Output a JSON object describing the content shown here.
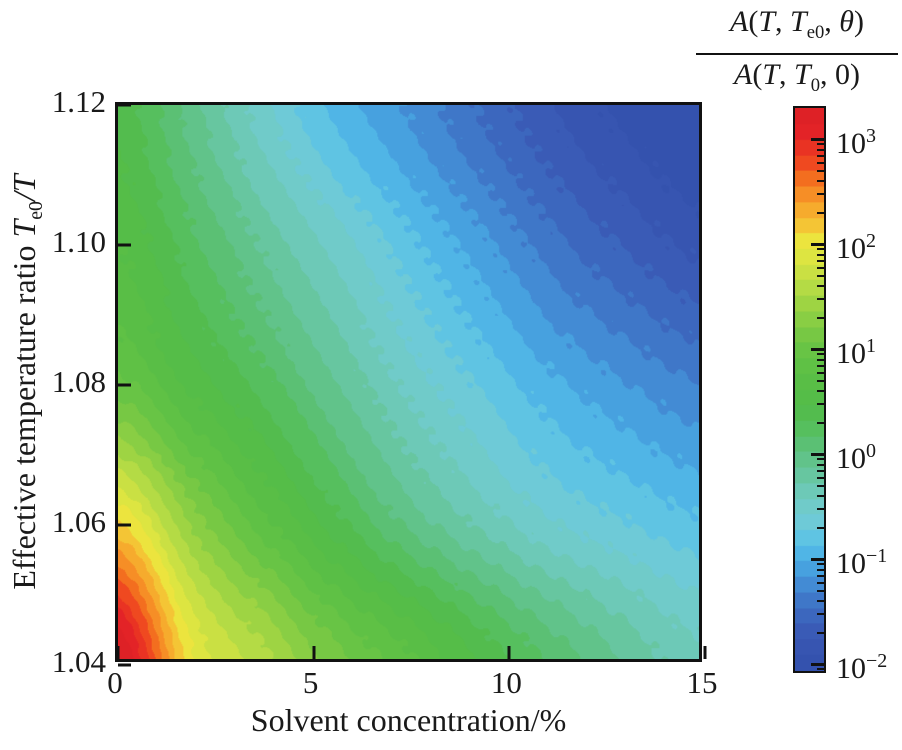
{
  "figure": {
    "background": "#ffffff",
    "axis_color": "#111111",
    "text_color": "#1a1a1a"
  },
  "chart_data": {
    "type": "heatmap",
    "title": "",
    "xlabel_segments": [
      {
        "text": "Solvent concentration/%"
      }
    ],
    "ylabel_segments": [
      {
        "text": "Effective temperature ratio "
      },
      {
        "text": "T",
        "italic": true
      },
      {
        "text": "e0",
        "sub": true
      },
      {
        "text": "/",
        "italic": true
      },
      {
        "text": "T",
        "italic": true
      }
    ],
    "x": {
      "min": 0,
      "max": 15,
      "ticks": [
        {
          "v": 0,
          "label": "0"
        },
        {
          "v": 5,
          "label": "5"
        },
        {
          "v": 10,
          "label": "10"
        },
        {
          "v": 15,
          "label": "15"
        }
      ]
    },
    "y": {
      "min": 1.04,
      "max": 1.12,
      "ticks": [
        {
          "v": 1.04,
          "label": "1.04"
        },
        {
          "v": 1.06,
          "label": "1.06"
        },
        {
          "v": 1.08,
          "label": "1.08"
        },
        {
          "v": 1.1,
          "label": "1.10"
        },
        {
          "v": 1.12,
          "label": "1.12"
        }
      ]
    },
    "value_scale": "log10",
    "value_range_log10": [
      -2.1,
      3.3
    ],
    "contour_step_log10": 0.15,
    "grid": {
      "x": [
        0,
        1.875,
        3.75,
        5.625,
        7.5,
        9.375,
        11.25,
        13.125,
        15
      ],
      "y": [
        1.04,
        1.06,
        1.08,
        1.1,
        1.12
      ],
      "log10_values": [
        [
          3.35,
          2.0,
          1.55,
          1.1,
          0.78,
          0.42,
          0.1,
          -0.18,
          -0.4
        ],
        [
          2.1,
          1.3,
          0.8,
          0.35,
          -0.05,
          -0.35,
          -0.6,
          -0.75,
          -0.88
        ],
        [
          0.95,
          0.55,
          0.22,
          -0.15,
          -0.5,
          -0.78,
          -1.02,
          -1.2,
          -1.35
        ],
        [
          0.6,
          0.2,
          -0.18,
          -0.52,
          -0.85,
          -1.15,
          -1.45,
          -1.67,
          -1.85
        ],
        [
          0.4,
          -0.08,
          -0.55,
          -0.95,
          -1.22,
          -1.52,
          -1.8,
          -2.0,
          -2.15
        ]
      ]
    },
    "colormap_stops": [
      [
        -2.1,
        "#3350ac"
      ],
      [
        -1.9,
        "#3654b0"
      ],
      [
        -1.7,
        "#3a5cb7"
      ],
      [
        -1.5,
        "#3d6dc2"
      ],
      [
        -1.3,
        "#4287d2"
      ],
      [
        -1.15,
        "#469ddd"
      ],
      [
        -1.0,
        "#4eb3e6"
      ],
      [
        -0.8,
        "#62c6e2"
      ],
      [
        -0.65,
        "#70cbd5"
      ],
      [
        -0.5,
        "#70cbc6"
      ],
      [
        -0.35,
        "#6cc9b4"
      ],
      [
        -0.2,
        "#66c59c"
      ],
      [
        0.0,
        "#5ec17f"
      ],
      [
        0.2,
        "#56bf61"
      ],
      [
        0.4,
        "#53bc4b"
      ],
      [
        0.6,
        "#56bd46"
      ],
      [
        0.8,
        "#5ec045"
      ],
      [
        1.0,
        "#6ac445"
      ],
      [
        1.2,
        "#7fcb44"
      ],
      [
        1.4,
        "#9ad343"
      ],
      [
        1.6,
        "#b8dc45"
      ],
      [
        1.8,
        "#d5e342"
      ],
      [
        2.0,
        "#ebe93f"
      ],
      [
        2.2,
        "#f5c033"
      ],
      [
        2.4,
        "#f79e2a"
      ],
      [
        2.6,
        "#f4741f"
      ],
      [
        2.8,
        "#ee4320"
      ],
      [
        3.05,
        "#e42327"
      ],
      [
        3.3,
        "#dc2026"
      ]
    ],
    "colorbar": {
      "scale": "log",
      "numerator_segments": [
        {
          "text": "A",
          "italic": true
        },
        {
          "text": "("
        },
        {
          "text": "T",
          "italic": true
        },
        {
          "text": ", "
        },
        {
          "text": "T",
          "italic": true
        },
        {
          "text": "e0",
          "sub": true
        },
        {
          "text": ", "
        },
        {
          "text": "θ",
          "italic": true
        },
        {
          "text": ")"
        }
      ],
      "denominator_segments": [
        {
          "text": "A",
          "italic": true
        },
        {
          "text": "("
        },
        {
          "text": "T",
          "italic": true
        },
        {
          "text": ", "
        },
        {
          "text": "T",
          "italic": true
        },
        {
          "text": "0",
          "sub": true
        },
        {
          "text": ", "
        },
        {
          "text": "0"
        },
        {
          "text": ")"
        }
      ],
      "major_ticks": [
        {
          "exp": 3,
          "label": "3"
        },
        {
          "exp": 2,
          "label": "2"
        },
        {
          "exp": 1,
          "label": "1"
        },
        {
          "exp": 0,
          "label": "0"
        },
        {
          "exp": -1,
          "label": "−1"
        },
        {
          "exp": -2,
          "label": "−2"
        }
      ],
      "minor_tick_multiples": [
        2,
        3,
        4,
        5,
        6,
        7,
        8,
        9
      ]
    }
  }
}
